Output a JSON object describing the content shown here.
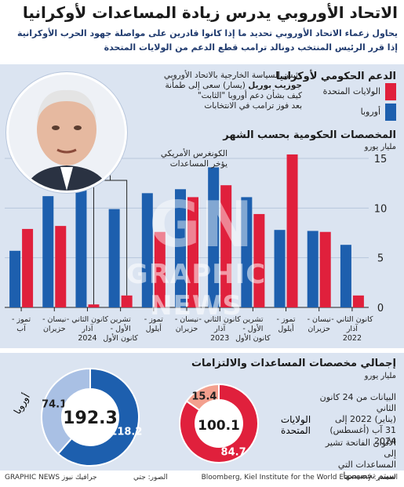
{
  "header": {
    "title": "الاتحاد الأوروبي يدرس زيادة المساعدات لأوكرانيا",
    "subtitle_line1": "يحاول زعماء الاتحاد الأوروبي تحديد ما إذا كانوا قادرين على مواصلة جهود الحرب الأوكرانية",
    "subtitle_line2": "إذا قرر الرئيس المنتخب دونالد ترامب قطع الدعم من الولايات المتحدة"
  },
  "legend": {
    "title": "الدعم الحكومي لأوكرانيا",
    "items": [
      {
        "label": "الولايات المتحدة",
        "color": "#e0203c"
      },
      {
        "label": "أوروبا",
        "color": "#1d5fae"
      }
    ]
  },
  "quote": {
    "line1": "رئيس السياسة الخارجية بالاتحاد الأوروبي",
    "name": "جوزيب بوريل",
    "line2_rest": " (يسار) سعى إلى طمأنة",
    "line3": "كيف بشأن دعم أوروبا \"الثابت\"",
    "line4": "بعد فوز ترامب في الانتخابات"
  },
  "annotation": {
    "line1": "الكونغرس الأمريكي",
    "line2": "يؤخر المساعدات"
  },
  "monthly": {
    "title": "المخصصات الحكومية بحسب الشهر",
    "unit": "مليار يورو"
  },
  "chart_data": [
    {
      "type": "bar",
      "title": "المخصصات الحكومية بحسب الشهر",
      "ylabel": "مليار يورو",
      "ylim": [
        0,
        15
      ],
      "yticks": [
        "0",
        "5",
        "10",
        "15"
      ],
      "categories": [
        "كانون الثاني - آذار 2022",
        "نيسان - حزيران",
        "تموز - أيلول",
        "تشرين الأول - كانون الأول",
        "كانون الثاني - آذار 2023",
        "نيسان - حزيران",
        "تموز - أيلول",
        "تشرين الأول - كانون الأول",
        "كانون الثاني - آذار 2024",
        "نيسان - حزيران",
        "تموز - آب"
      ],
      "category_labels": [
        {
          "l1": "كانون الثاني -",
          "l2": "آذار",
          "l3": "2022"
        },
        {
          "l1": "نيسان -",
          "l2": "حزيران",
          "l3": ""
        },
        {
          "l1": "تموز -",
          "l2": "أيلول",
          "l3": ""
        },
        {
          "l1": "تشرين",
          "l2": "الأول -",
          "l3": "كانون الأول"
        },
        {
          "l1": "كانون الثاني -",
          "l2": "آذار",
          "l3": "2023"
        },
        {
          "l1": "نيسان -",
          "l2": "حزيران",
          "l3": ""
        },
        {
          "l1": "تموز -",
          "l2": "أيلول",
          "l3": ""
        },
        {
          "l1": "تشرين",
          "l2": "الأول -",
          "l3": "كانون الأول"
        },
        {
          "l1": "كانون الثاني -",
          "l2": "آذار",
          "l3": "2024"
        },
        {
          "l1": "نيسان -",
          "l2": "حزيران",
          "l3": ""
        },
        {
          "l1": "تموز -",
          "l2": "آب",
          "l3": ""
        }
      ],
      "series": [
        {
          "name": "الولايات المتحدة",
          "color": "#e0203c",
          "values": [
            1.2,
            7.6,
            15.4,
            9.4,
            12.3,
            11.1,
            7.6,
            1.2,
            0.3,
            8.2,
            7.9
          ]
        },
        {
          "name": "أوروبا",
          "color": "#1d5fae",
          "values": [
            6.3,
            7.7,
            7.8,
            11.1,
            14.1,
            11.9,
            11.5,
            9.9,
            12.1,
            11.2,
            5.7
          ]
        }
      ]
    },
    {
      "type": "pie",
      "title": "إجمالي مخصصات المساعدات والالتزامات",
      "ylabel": "مليار يورو",
      "donuts": [
        {
          "name": "أوروبا",
          "total": "192.3",
          "slices": [
            {
              "label": "118.2",
              "value": 118.2,
              "color": "#1d5fae"
            },
            {
              "label": "74.1",
              "value": 74.1,
              "color": "#a9c0e4"
            }
          ]
        },
        {
          "name": "الولايات المتحدة",
          "total": "100.1",
          "slices": [
            {
              "label": "84.7",
              "value": 84.7,
              "color": "#e0203c"
            },
            {
              "label": "15.4",
              "value": 15.4,
              "color": "#f3a08e"
            }
          ]
        }
      ]
    }
  ],
  "totals": {
    "title": "إجمالي مخصصات المساعدات والالتزامات",
    "unit": "مليار يورو",
    "europe_label": "أوروبا",
    "us_label_l1": "الولايات",
    "us_label_l2": "المتحدة",
    "note_period_l1": "البيانات من 24 كانون الثاني",
    "note_period_l2": "(يناير) 2022 إلى",
    "note_period_l3": "31 آب (أغسطس) 2024",
    "note_light_l1": "الألوان الفاتحة تشير إلى",
    "note_light_l2": "المساعدات التي سيتم تخصيصها"
  },
  "footer": {
    "source": "المصدر: Bloomberg, Kiel Institute for the World Economy",
    "credit": "الصور: جتي",
    "brand": "GRAPHIC NEWS جرافيك نيوز"
  },
  "watermark": {
    "big": "GN",
    "text": "GRAPHIC NEWS"
  }
}
